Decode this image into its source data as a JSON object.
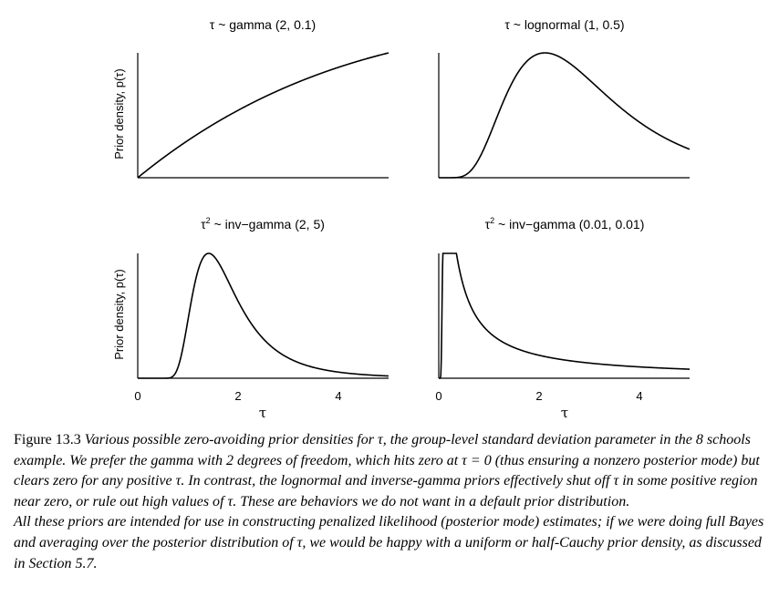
{
  "chart_data": [
    {
      "type": "line",
      "title_prefix": "τ",
      "title_suffix": " ~ gamma (2, 0.1)",
      "ylabel": "Prior density, p(τ)",
      "xlabel": "",
      "x_ticks": [],
      "distribution": "gamma",
      "params": [
        2,
        0.1
      ]
    },
    {
      "type": "line",
      "title_prefix": "τ",
      "title_suffix": " ~ lognormal (1, 0.5)",
      "ylabel": "",
      "xlabel": "",
      "x_ticks": [],
      "distribution": "lognormal",
      "params": [
        1,
        0.5
      ]
    },
    {
      "type": "line",
      "title_prefix": "τ",
      "title_sup": "2",
      "title_suffix": " ~ inv−gamma (2, 5)",
      "ylabel": "Prior density, p(τ)",
      "xlabel": "τ",
      "x_ticks": [
        "0",
        "2",
        "4"
      ],
      "distribution": "inv-gamma",
      "params": [
        2,
        5
      ]
    },
    {
      "type": "line",
      "title_prefix": "τ",
      "title_sup": "2",
      "title_suffix": " ~ inv−gamma (0.01, 0.01)",
      "ylabel": "",
      "xlabel": "τ",
      "x_ticks": [
        "0",
        "2",
        "4"
      ],
      "distribution": "inv-gamma",
      "params": [
        0.01,
        0.01
      ]
    }
  ],
  "caption": {
    "label": "Figure 13.3",
    "text": "Various possible zero-avoiding prior densities for τ, the group-level standard deviation parameter in the 8 schools example. We prefer the gamma with 2 degrees of freedom, which hits zero at τ = 0 (thus ensuring a nonzero posterior mode) but clears zero for any positive τ. In contrast, the lognormal and inverse-gamma priors effectively shut off τ in some positive region near zero, or rule out high values of τ. These are behaviors we do not want in a default prior distribution.",
    "text2": "All these priors are intended for use in constructing penalized likelihood (posterior mode) estimates; if we were doing full Bayes and averaging over the posterior distribution of τ, we would be happy with a uniform or half-Cauchy prior density, as discussed in Section 5.7."
  }
}
